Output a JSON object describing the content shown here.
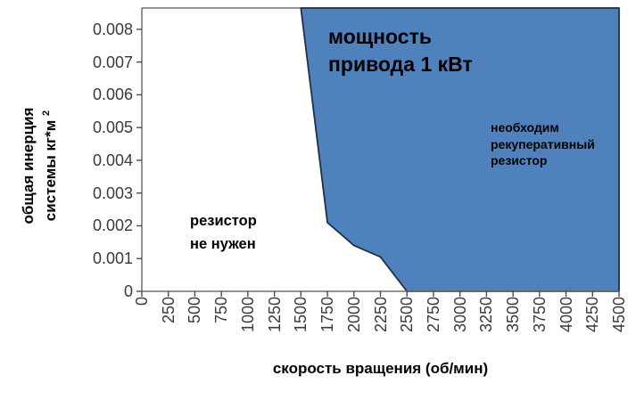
{
  "chart_data": {
    "type": "area",
    "title_lines": [
      "мощность",
      "привода 1 кВт"
    ],
    "xlabel": "скорость вращения (об/мин)",
    "ylabel_line1": "общая инерция",
    "ylabel_line2": "системы кг*м",
    "ylabel_superscript": "2",
    "xlim": [
      0,
      4500
    ],
    "ylim": [
      0,
      0.00865
    ],
    "x_ticks": [
      0,
      250,
      500,
      750,
      1000,
      1250,
      1500,
      1750,
      2000,
      2250,
      2500,
      2750,
      3000,
      3250,
      3500,
      3750,
      4000,
      4250,
      4500
    ],
    "y_ticks": [
      "0",
      "0.001",
      "0.002",
      "0.003",
      "0.004",
      "0.005",
      "0.006",
      "0.007",
      "0.008"
    ],
    "grid": false,
    "legend": "none",
    "series": [
      {
        "name": "область: необходим рекуперативный резистор",
        "region": "right-of-boundary",
        "boundary_points": [
          [
            1500,
            0.00865
          ],
          [
            1750,
            0.0021
          ],
          [
            2000,
            0.0014
          ],
          [
            2250,
            0.00105
          ],
          [
            2500,
            0
          ]
        ],
        "fill": "#4f81bd",
        "stroke": "#1e3048"
      }
    ],
    "annotations": [
      {
        "id": "blue-region",
        "lines": [
          "необходим",
          "рекуперативный",
          "резистор"
        ]
      },
      {
        "id": "white-region",
        "lines": [
          "резистор",
          "не нужен"
        ]
      }
    ],
    "colors": {
      "axis": "#6e6e6e",
      "tick": "#404040",
      "tick_label": "#3a3a3a",
      "text": "#000000",
      "background": "#ffffff"
    }
  }
}
